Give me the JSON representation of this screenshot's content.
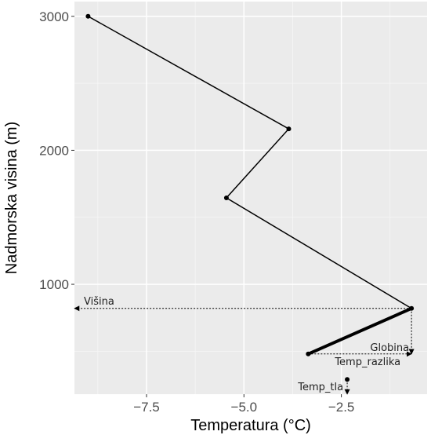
{
  "chart_data": {
    "type": "line",
    "xlabel": "Temperatura (°C)",
    "ylabel": "Nadmorska visina (m)",
    "xlim": [
      -9.35,
      -0.3
    ],
    "ylim": [
      180,
      3110
    ],
    "x_ticks": [
      -7.5,
      -5.0,
      -2.5
    ],
    "x_tick_labels": [
      "−7.5",
      "−5.0",
      "−2.5"
    ],
    "y_ticks": [
      1000,
      2000,
      3000
    ],
    "y_tick_labels": [
      "1000",
      "2000",
      "3000"
    ],
    "grid": true,
    "background": "#ebebeb",
    "series": [
      {
        "x": [
          -9.0,
          -3.85,
          -5.45,
          -0.7,
          -3.35
        ],
        "y": [
          3000,
          2160,
          1645,
          820,
          480
        ]
      }
    ],
    "extra_points": [
      {
        "x": -2.35,
        "y": 290
      }
    ],
    "annotations": [
      {
        "text": "Višina",
        "kind": "arrow-horizontal",
        "x": -0.7,
        "y": 820,
        "x_end": -9.35
      },
      {
        "text": "Globina",
        "kind": "arrow-vertical",
        "x": -0.7,
        "y": 820,
        "y_end": 480
      },
      {
        "text": "Temp_razlika",
        "kind": "arrow-horizontal",
        "x": -3.35,
        "y": 480,
        "x_end": -0.7
      },
      {
        "text": "Temp_tla",
        "kind": "arrow-vertical",
        "x": -2.35,
        "y": 290,
        "y_end": 180
      }
    ],
    "highlight_segment": {
      "from": [
        -0.7,
        820
      ],
      "to": [
        -3.35,
        480
      ]
    }
  }
}
